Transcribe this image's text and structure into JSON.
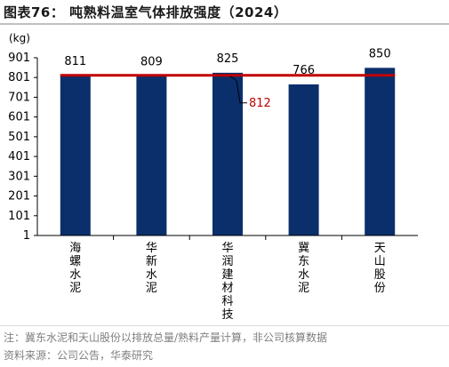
{
  "figure_title": "图表76：  吨熟料温室气体排放强度（2024）",
  "footnote": "注：冀东水泥和天山股份以排放总量/熟料产量计算，非公司核算数据",
  "source": "资料来源：公司公告，华泰研究",
  "colors": {
    "bar": "#0b2f6b",
    "reference_line": "#c00000",
    "reference_label": "#c00000",
    "axis": "#000000",
    "text": "#000000"
  },
  "chart_data": {
    "type": "bar",
    "title": "",
    "xlabel": "",
    "ylabel": "(kg)",
    "ylim": [
      1,
      901
    ],
    "yticks": [
      1,
      101,
      201,
      301,
      401,
      501,
      601,
      701,
      801,
      901
    ],
    "ytick_labels": [
      "1",
      "101",
      "201",
      "301",
      "401",
      "501",
      "601",
      "701",
      "801",
      "901"
    ],
    "categories": [
      "海螺水泥",
      "华新水泥",
      "华润建材科技",
      "冀东水泥",
      "天山股份"
    ],
    "values": [
      811,
      809,
      825,
      766,
      850
    ],
    "data_labels": [
      "811",
      "809",
      "825",
      "766",
      "850"
    ],
    "reference_line": {
      "value": 812,
      "label": "812"
    },
    "grid": false,
    "legend": "none"
  }
}
